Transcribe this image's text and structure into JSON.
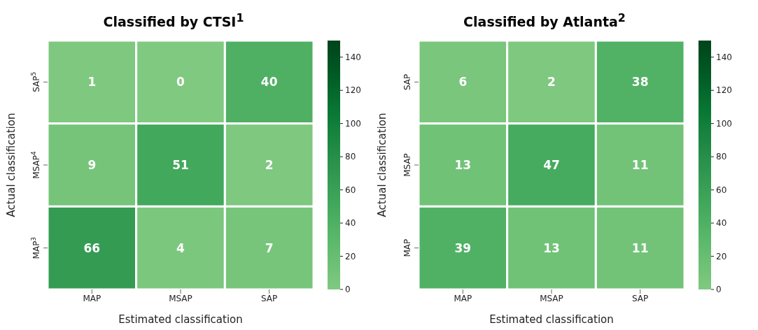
{
  "chart_data": [
    {
      "type": "heatmap",
      "title": "Classified by CTSI$^{1}$",
      "xlabel": "Estimated classification",
      "ylabel": "Actual classification",
      "categories": [
        "MAP",
        "MSAP",
        "SAP"
      ],
      "y_categories": [
        "SAP$^{5}$",
        "MSAP$^{4}$",
        "MAP$^{3}$"
      ],
      "cells": [
        [
          1,
          0,
          40
        ],
        [
          9,
          51,
          2
        ],
        [
          66,
          4,
          7
        ]
      ],
      "clim": [
        0,
        150
      ],
      "cticks": [
        0,
        20,
        40,
        60,
        80,
        100,
        120,
        140
      ],
      "data_labels": true
    },
    {
      "type": "heatmap",
      "title": "Classified by Atlanta$^{2}$",
      "xlabel": "Estimated classification",
      "ylabel": "Actual classification",
      "categories": [
        "MAP",
        "MSAP",
        "SAP"
      ],
      "y_categories": [
        "SAP",
        "MSAP",
        "MAP"
      ],
      "cells": [
        [
          6,
          2,
          38
        ],
        [
          13,
          47,
          11
        ],
        [
          39,
          13,
          11
        ]
      ],
      "clim": [
        0,
        150
      ],
      "cticks": [
        0,
        20,
        40,
        60,
        80,
        100,
        120,
        140
      ],
      "data_labels": true
    }
  ]
}
